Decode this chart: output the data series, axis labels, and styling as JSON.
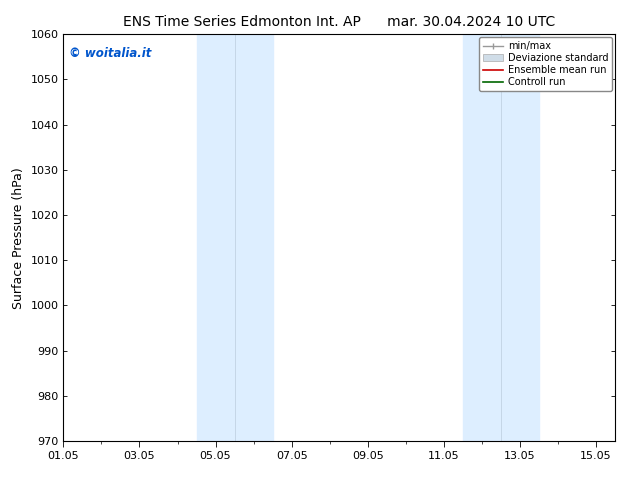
{
  "title_left": "ENS Time Series Edmonton Int. AP",
  "title_right": "mar. 30.04.2024 10 UTC",
  "ylabel": "Surface Pressure (hPa)",
  "ylim": [
    970,
    1060
  ],
  "yticks": [
    970,
    980,
    990,
    1000,
    1010,
    1020,
    1030,
    1040,
    1050,
    1060
  ],
  "xtick_labels": [
    "01.05",
    "03.05",
    "05.05",
    "07.05",
    "09.05",
    "11.05",
    "13.05",
    "15.05"
  ],
  "xtick_positions": [
    0,
    2,
    4,
    6,
    8,
    10,
    12,
    14
  ],
  "x_minor_positions": [
    1,
    3,
    5,
    7,
    9,
    11,
    13
  ],
  "xlim": [
    0,
    14.5
  ],
  "watermark": "© woitalia.it",
  "watermark_color": "#0055cc",
  "bg_color": "#ffffff",
  "shaded_regions": [
    {
      "x_start": 3.5,
      "x_end": 4.5,
      "color": "#ddeeff"
    },
    {
      "x_start": 4.5,
      "x_end": 5.5,
      "color": "#ddeeff"
    },
    {
      "x_start": 10.5,
      "x_end": 11.5,
      "color": "#ddeeff"
    },
    {
      "x_start": 11.5,
      "x_end": 12.5,
      "color": "#ddeeff"
    }
  ],
  "shade_dividers": [
    4.5,
    11.5
  ],
  "grid_color": "#cccccc",
  "spine_color": "#000000",
  "title_fontsize": 10,
  "tick_fontsize": 8,
  "ylabel_fontsize": 9,
  "legend_fontsize": 7
}
